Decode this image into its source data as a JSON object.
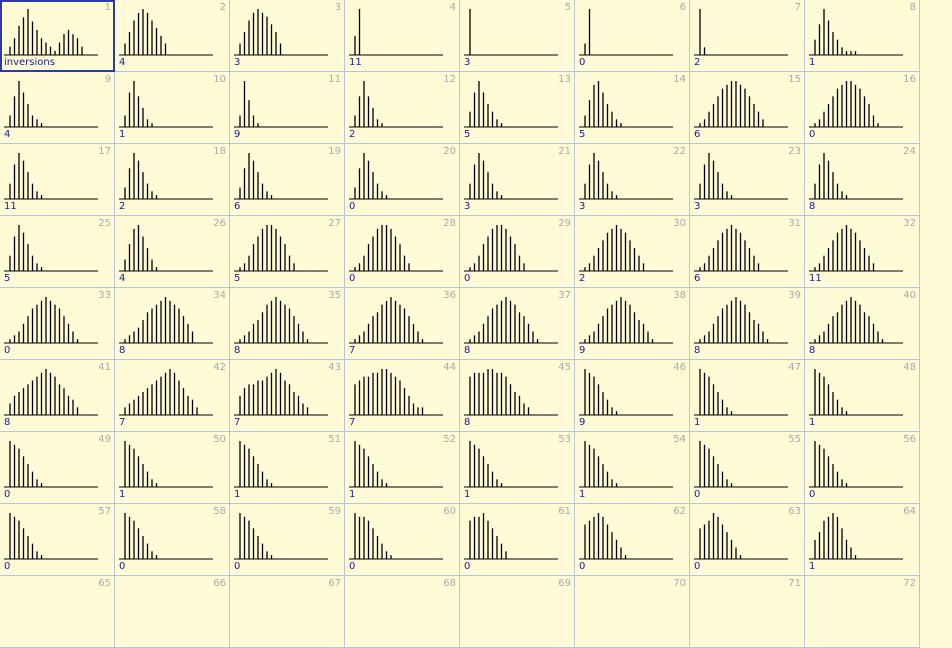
{
  "cells": [
    {
      "n": "1",
      "label": "inversions",
      "values": [
        2,
        4,
        7,
        9,
        11,
        8,
        6,
        4,
        3,
        2,
        1,
        3,
        5,
        6,
        5,
        4,
        2
      ]
    },
    {
      "n": "2",
      "label": "4",
      "values": [
        3,
        6,
        9,
        11,
        12,
        11,
        9,
        7,
        5,
        3
      ]
    },
    {
      "n": "3",
      "label": "3",
      "values": [
        3,
        6,
        9,
        11,
        12,
        11,
        10,
        8,
        6,
        3
      ]
    },
    {
      "n": "4",
      "label": "11",
      "values": [
        5,
        12
      ]
    },
    {
      "n": "5",
      "label": "3",
      "values": [
        12
      ]
    },
    {
      "n": "6",
      "label": "0",
      "values": [
        3,
        12
      ]
    },
    {
      "n": "7",
      "label": "2",
      "values": [
        12,
        2
      ]
    },
    {
      "n": "8",
      "label": "1",
      "values": [
        4,
        8,
        12,
        9,
        6,
        4,
        2,
        1,
        1,
        1
      ]
    },
    {
      "n": "9",
      "label": "4",
      "values": [
        3,
        8,
        12,
        9,
        6,
        3,
        2,
        1
      ]
    },
    {
      "n": "10",
      "label": "1",
      "values": [
        3,
        9,
        12,
        8,
        5,
        2,
        1
      ]
    },
    {
      "n": "11",
      "label": "9",
      "values": [
        3,
        12,
        7,
        3,
        1
      ]
    },
    {
      "n": "12",
      "label": "2",
      "values": [
        3,
        8,
        12,
        8,
        5,
        2,
        1
      ]
    },
    {
      "n": "13",
      "label": "5",
      "values": [
        4,
        9,
        12,
        9,
        6,
        4,
        2,
        1
      ]
    },
    {
      "n": "14",
      "label": "5",
      "values": [
        3,
        7,
        11,
        12,
        9,
        6,
        4,
        2,
        1
      ]
    },
    {
      "n": "15",
      "label": "6",
      "values": [
        1,
        2,
        4,
        6,
        8,
        10,
        11,
        12,
        12,
        11,
        10,
        8,
        6,
        4,
        2
      ]
    },
    {
      "n": "16",
      "label": "0",
      "values": [
        1,
        2,
        4,
        6,
        8,
        10,
        11,
        12,
        12,
        11,
        10,
        8,
        6,
        3,
        1
      ]
    },
    {
      "n": "17",
      "label": "11",
      "values": [
        4,
        9,
        12,
        10,
        7,
        4,
        2,
        1
      ]
    },
    {
      "n": "18",
      "label": "2",
      "values": [
        3,
        8,
        12,
        10,
        7,
        4,
        2,
        1
      ]
    },
    {
      "n": "19",
      "label": "6",
      "values": [
        3,
        8,
        12,
        10,
        7,
        4,
        2,
        1
      ]
    },
    {
      "n": "20",
      "label": "0",
      "values": [
        3,
        8,
        12,
        10,
        7,
        4,
        2,
        1
      ]
    },
    {
      "n": "21",
      "label": "3",
      "values": [
        4,
        9,
        12,
        10,
        7,
        4,
        2,
        1
      ]
    },
    {
      "n": "22",
      "label": "3",
      "values": [
        4,
        9,
        12,
        10,
        7,
        4,
        2,
        1
      ]
    },
    {
      "n": "23",
      "label": "3",
      "values": [
        4,
        9,
        12,
        10,
        7,
        4,
        2,
        1
      ]
    },
    {
      "n": "24",
      "label": "8",
      "values": [
        4,
        9,
        12,
        10,
        7,
        4,
        2,
        1
      ]
    },
    {
      "n": "25",
      "label": "5",
      "values": [
        4,
        9,
        12,
        10,
        7,
        4,
        2,
        1
      ]
    },
    {
      "n": "26",
      "label": "4",
      "values": [
        3,
        7,
        11,
        12,
        9,
        6,
        3,
        1
      ]
    },
    {
      "n": "27",
      "label": "5",
      "values": [
        1,
        2,
        4,
        7,
        9,
        11,
        12,
        12,
        11,
        9,
        7,
        4,
        2
      ]
    },
    {
      "n": "28",
      "label": "0",
      "values": [
        1,
        2,
        4,
        7,
        9,
        11,
        12,
        12,
        11,
        9,
        7,
        4,
        2
      ]
    },
    {
      "n": "29",
      "label": "0",
      "values": [
        1,
        2,
        4,
        7,
        9,
        11,
        12,
        12,
        11,
        9,
        7,
        4,
        2
      ]
    },
    {
      "n": "30",
      "label": "2",
      "values": [
        1,
        2,
        4,
        6,
        8,
        10,
        11,
        12,
        11,
        10,
        8,
        6,
        4,
        2
      ]
    },
    {
      "n": "31",
      "label": "6",
      "values": [
        1,
        2,
        4,
        6,
        8,
        10,
        11,
        12,
        11,
        10,
        8,
        6,
        4,
        2
      ]
    },
    {
      "n": "32",
      "label": "11",
      "values": [
        1,
        2,
        4,
        6,
        8,
        10,
        11,
        12,
        11,
        10,
        8,
        6,
        4,
        2
      ]
    },
    {
      "n": "33",
      "label": "0",
      "values": [
        1,
        2,
        3,
        5,
        7,
        9,
        10,
        11,
        12,
        11,
        10,
        9,
        7,
        5,
        3,
        1
      ]
    },
    {
      "n": "34",
      "label": "8",
      "values": [
        1,
        2,
        3,
        4,
        6,
        8,
        9,
        10,
        11,
        12,
        11,
        10,
        9,
        7,
        5,
        3
      ]
    },
    {
      "n": "35",
      "label": "8",
      "values": [
        1,
        2,
        3,
        5,
        6,
        8,
        10,
        11,
        12,
        11,
        10,
        9,
        7,
        5,
        3,
        1
      ]
    },
    {
      "n": "36",
      "label": "7",
      "values": [
        1,
        2,
        3,
        5,
        7,
        8,
        10,
        11,
        12,
        11,
        10,
        9,
        7,
        5,
        3,
        1
      ]
    },
    {
      "n": "37",
      "label": "8",
      "values": [
        1,
        2,
        3,
        5,
        7,
        9,
        10,
        11,
        12,
        11,
        10,
        8,
        7,
        5,
        3,
        1
      ]
    },
    {
      "n": "38",
      "label": "9",
      "values": [
        1,
        2,
        3,
        5,
        7,
        9,
        10,
        11,
        12,
        11,
        10,
        8,
        6,
        5,
        3,
        1
      ]
    },
    {
      "n": "39",
      "label": "8",
      "values": [
        1,
        2,
        3,
        5,
        7,
        9,
        10,
        11,
        12,
        11,
        10,
        8,
        6,
        5,
        3,
        1
      ]
    },
    {
      "n": "40",
      "label": "8",
      "values": [
        1,
        2,
        3,
        5,
        7,
        8,
        10,
        11,
        12,
        11,
        10,
        8,
        7,
        5,
        3,
        1
      ]
    },
    {
      "n": "41",
      "label": "8",
      "values": [
        3,
        5,
        6,
        7,
        8,
        9,
        10,
        11,
        12,
        11,
        10,
        8,
        7,
        5,
        4,
        2
      ]
    },
    {
      "n": "42",
      "label": "7",
      "values": [
        2,
        3,
        4,
        5,
        6,
        7,
        8,
        9,
        10,
        11,
        12,
        11,
        9,
        7,
        5,
        4,
        2
      ]
    },
    {
      "n": "43",
      "label": "7",
      "values": [
        5,
        7,
        8,
        8,
        9,
        9,
        10,
        11,
        12,
        11,
        9,
        8,
        6,
        5,
        3,
        2
      ]
    },
    {
      "n": "44",
      "label": "7",
      "values": [
        8,
        9,
        10,
        10,
        11,
        11,
        12,
        12,
        11,
        10,
        9,
        7,
        5,
        3,
        2,
        2
      ]
    },
    {
      "n": "45",
      "label": "8",
      "values": [
        10,
        11,
        11,
        11,
        12,
        12,
        11,
        11,
        10,
        8,
        6,
        5,
        3,
        2
      ]
    },
    {
      "n": "46",
      "label": "9",
      "values": [
        12,
        11,
        10,
        8,
        6,
        4,
        2,
        1
      ]
    },
    {
      "n": "47",
      "label": "1",
      "values": [
        12,
        11,
        10,
        8,
        6,
        4,
        2,
        1
      ]
    },
    {
      "n": "48",
      "label": "1",
      "values": [
        12,
        11,
        10,
        8,
        6,
        4,
        2,
        1
      ]
    },
    {
      "n": "49",
      "label": "0",
      "values": [
        12,
        11,
        10,
        8,
        6,
        4,
        2,
        1
      ]
    },
    {
      "n": "50",
      "label": "1",
      "values": [
        12,
        11,
        10,
        8,
        6,
        4,
        2,
        1
      ]
    },
    {
      "n": "51",
      "label": "1",
      "values": [
        12,
        11,
        10,
        8,
        6,
        4,
        2,
        1
      ]
    },
    {
      "n": "52",
      "label": "1",
      "values": [
        12,
        11,
        10,
        8,
        6,
        4,
        2,
        1
      ]
    },
    {
      "n": "53",
      "label": "1",
      "values": [
        12,
        11,
        10,
        8,
        6,
        4,
        2,
        1
      ]
    },
    {
      "n": "54",
      "label": "1",
      "values": [
        12,
        11,
        10,
        8,
        6,
        4,
        2,
        1
      ]
    },
    {
      "n": "55",
      "label": "0",
      "values": [
        12,
        11,
        10,
        8,
        6,
        4,
        2,
        1
      ]
    },
    {
      "n": "56",
      "label": "0",
      "values": [
        12,
        11,
        10,
        8,
        6,
        4,
        2,
        1
      ]
    },
    {
      "n": "57",
      "label": "0",
      "values": [
        12,
        11,
        10,
        8,
        6,
        4,
        2,
        1
      ]
    },
    {
      "n": "58",
      "label": "0",
      "values": [
        12,
        11,
        10,
        8,
        6,
        4,
        2,
        1
      ]
    },
    {
      "n": "59",
      "label": "0",
      "values": [
        12,
        11,
        10,
        8,
        6,
        4,
        2,
        1
      ]
    },
    {
      "n": "60",
      "label": "0",
      "values": [
        12,
        11,
        11,
        10,
        8,
        6,
        4,
        2,
        1
      ]
    },
    {
      "n": "61",
      "label": "0",
      "values": [
        10,
        11,
        11,
        12,
        10,
        8,
        6,
        4,
        2
      ]
    },
    {
      "n": "62",
      "label": "0",
      "values": [
        9,
        10,
        11,
        12,
        11,
        9,
        7,
        5,
        3,
        1
      ]
    },
    {
      "n": "63",
      "label": "0",
      "values": [
        8,
        9,
        10,
        12,
        11,
        9,
        7,
        5,
        3,
        1
      ]
    },
    {
      "n": "64",
      "label": "1",
      "values": [
        5,
        7,
        10,
        11,
        12,
        11,
        8,
        5,
        3,
        1
      ]
    },
    {
      "n": "65",
      "label": "",
      "values": []
    },
    {
      "n": "66",
      "label": "",
      "values": []
    },
    {
      "n": "67",
      "label": "",
      "values": []
    },
    {
      "n": "68",
      "label": "",
      "values": []
    },
    {
      "n": "69",
      "label": "",
      "values": []
    },
    {
      "n": "70",
      "label": "",
      "values": []
    },
    {
      "n": "71",
      "label": "",
      "values": []
    },
    {
      "n": "72",
      "label": "",
      "values": []
    }
  ],
  "chart_data": {
    "type": "bar",
    "note": "grid of small-multiple histograms; each cell has its own values in cells[]"
  }
}
